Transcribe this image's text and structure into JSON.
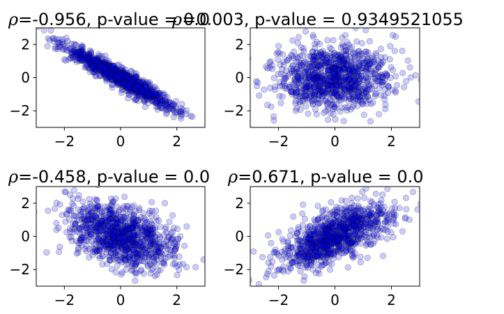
{
  "chart_data": [
    {
      "type": "scatter",
      "title": "ρ=-0.956, p-value = 0.0",
      "title_parts": [
        "ρ",
        "=-0.956, p-value = 0.0"
      ],
      "correlation": -0.956,
      "p_value": "0.0",
      "xlim": [
        -3,
        3
      ],
      "ylim": [
        -3,
        3
      ],
      "xticks": [
        -2,
        0,
        2
      ],
      "yticks": [
        -2,
        0,
        2
      ],
      "n_points": 1000,
      "grid": false,
      "marker_color": "#0000ff",
      "marker_alpha": 0.2,
      "edge_color": "#000000"
    },
    {
      "type": "scatter",
      "title": "ρ=0.003, p-value = 0.9349521055",
      "title_parts": [
        "ρ",
        "=0.003, p-value = 0.9349521055"
      ],
      "correlation": 0.003,
      "p_value": "0.9349521055",
      "xlim": [
        -3,
        3
      ],
      "ylim": [
        -3,
        3
      ],
      "xticks": [
        -2,
        0,
        2
      ],
      "yticks": [
        -2,
        0,
        2
      ],
      "n_points": 1000,
      "grid": false,
      "marker_color": "#0000ff",
      "marker_alpha": 0.2,
      "edge_color": "#000000"
    },
    {
      "type": "scatter",
      "title": "ρ=-0.458, p-value = 0.0",
      "title_parts": [
        "ρ",
        "=-0.458, p-value = 0.0"
      ],
      "correlation": -0.458,
      "p_value": "0.0",
      "xlim": [
        -3,
        3
      ],
      "ylim": [
        -3,
        3
      ],
      "xticks": [
        -2,
        0,
        2
      ],
      "yticks": [
        -2,
        0,
        2
      ],
      "n_points": 1000,
      "grid": false,
      "marker_color": "#0000ff",
      "marker_alpha": 0.2,
      "edge_color": "#000000"
    },
    {
      "type": "scatter",
      "title": "ρ=0.671, p-value = 0.0",
      "title_parts": [
        "ρ",
        "=0.671, p-value = 0.0"
      ],
      "correlation": 0.671,
      "p_value": "0.0",
      "xlim": [
        -3,
        3
      ],
      "ylim": [
        -3,
        3
      ],
      "xticks": [
        -2,
        0,
        2
      ],
      "yticks": [
        -2,
        0,
        2
      ],
      "n_points": 1000,
      "grid": false,
      "marker_color": "#0000ff",
      "marker_alpha": 0.2,
      "edge_color": "#000000"
    }
  ]
}
